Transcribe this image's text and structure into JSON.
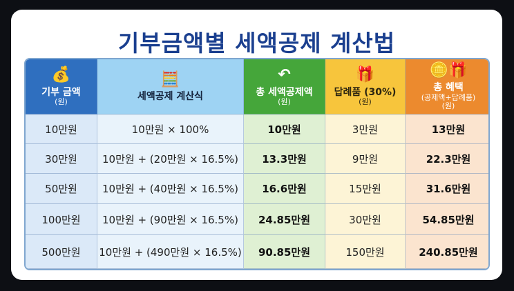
{
  "title": "기부금액별 세액공제 계산법",
  "headers": [
    {
      "icon": "money-bag-icon",
      "glyph": "💰",
      "label": "기부 금액",
      "unit": "(원)"
    },
    {
      "icon": "calculator-icon",
      "glyph": "🧮",
      "label": "세액공제 계산식",
      "unit": ""
    },
    {
      "icon": "return-arrow-icon",
      "glyph": "↶",
      "label": "총 세액공제액",
      "unit": "(원)"
    },
    {
      "icon": "gift-icon",
      "glyph": "🎁",
      "label": "답례품 (30%)",
      "unit": "(원)"
    },
    {
      "icon": "coins-gift-icon",
      "glyph": "🪙🎁",
      "label": "총 혜택",
      "unit": "(공제액+답례품)",
      "unit2": "(원)"
    }
  ],
  "rows": [
    [
      "10만원",
      "10만원 × 100%",
      "10만원",
      "3만원",
      "13만원"
    ],
    [
      "30만원",
      "10만원 + (20만원 × 16.5%)",
      "13.3만원",
      "9만원",
      "22.3만원"
    ],
    [
      "50만원",
      "10만원 + (40만원 × 16.5%)",
      "16.6만원",
      "15만원",
      "31.6만원"
    ],
    [
      "100만원",
      "10만원 + (90만원 × 16.5%)",
      "24.85만원",
      "30만원",
      "54.85만원"
    ],
    [
      "500만원",
      "10만원 + (490만원 × 16.5%)",
      "90.85만원",
      "150만원",
      "240.85만원"
    ]
  ]
}
